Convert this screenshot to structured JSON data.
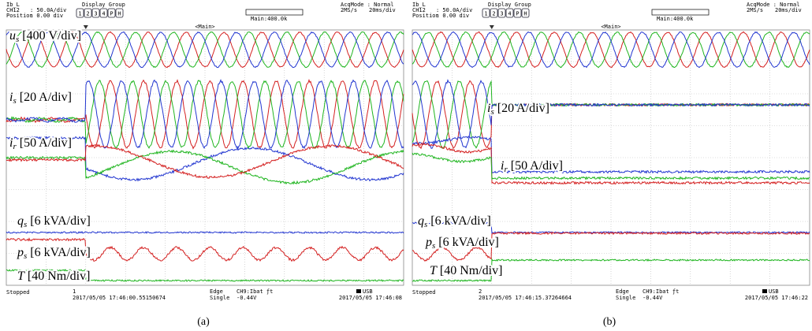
{
  "panels": [
    {
      "header": {
        "name": "Ib_L",
        "channel": "CH12",
        "scale": ": 50.0A/div",
        "position_label": "Position",
        "position": ": 0.00 div",
        "display_group": "Display Group",
        "buttons": [
          "1",
          "2",
          "3",
          "4",
          "P",
          "H"
        ],
        "acq_mode": "AcqMode : Normal",
        "rate": "2MS/s",
        "timebase": "20ms/div",
        "main": "Main:400.0k",
        "main_tag": "<Main>"
      },
      "labels": [
        {
          "symbol": "u",
          "sub": "s",
          "unit": "[400 V/div]"
        },
        {
          "symbol": "i",
          "sub": "s",
          "unit": "[20 A/div]"
        },
        {
          "symbol": "i",
          "sub": "r",
          "unit": "[50 A/div]"
        },
        {
          "symbol": "q",
          "sub": "s",
          "unit": "[6 kVA/div]"
        },
        {
          "symbol": "p",
          "sub": "s",
          "unit": "[6 kVA/div]"
        },
        {
          "symbol": "T",
          "sub": "",
          "unit": "[40 Nm/div]"
        }
      ],
      "footer": {
        "status": "Stopped",
        "index": "1",
        "trigger_time": "2017/05/05 17:46:00.55150674",
        "trigger": "Edge",
        "mode": "Single",
        "source": "CH9:Ibat ƒt",
        "level": "-0.44V",
        "storage": "USB",
        "saved": "2017/05/05 17:46:08"
      },
      "caption": "(a)"
    },
    {
      "header": {
        "name": "Ib_L",
        "channel": "CH12",
        "scale": ": 50.0A/div",
        "position_label": "Position",
        "position": ": 0.00 div",
        "display_group": "Display Group",
        "buttons": [
          "1",
          "2",
          "3",
          "4",
          "P",
          "H"
        ],
        "acq_mode": "AcqMode : Normal",
        "rate": "2MS/s",
        "timebase": "20ms/div",
        "main": "Main:400.0k",
        "main_tag": "<Main>"
      },
      "labels": [
        {
          "symbol": "i",
          "sub": "s",
          "unit": "[20 A/div]"
        },
        {
          "symbol": "i",
          "sub": "r",
          "unit": "[50 A/div]"
        },
        {
          "symbol": "q",
          "sub": "s",
          "unit": "[6 kVA/div]"
        },
        {
          "symbol": "p",
          "sub": "s",
          "unit": "[6 kVA/div]"
        },
        {
          "symbol": "T",
          "sub": "",
          "unit": "[40 Nm/div]"
        }
      ],
      "footer": {
        "status": "Stopped",
        "index": "2",
        "trigger_time": "2017/05/05 17:46:15.37264664",
        "trigger": "Edge",
        "mode": "Single",
        "source": "CH9:Ibat ƒt",
        "level": "-0.44V",
        "storage": "USB",
        "saved": "2017/05/05 17:46:22"
      },
      "caption": "(b)"
    }
  ]
}
